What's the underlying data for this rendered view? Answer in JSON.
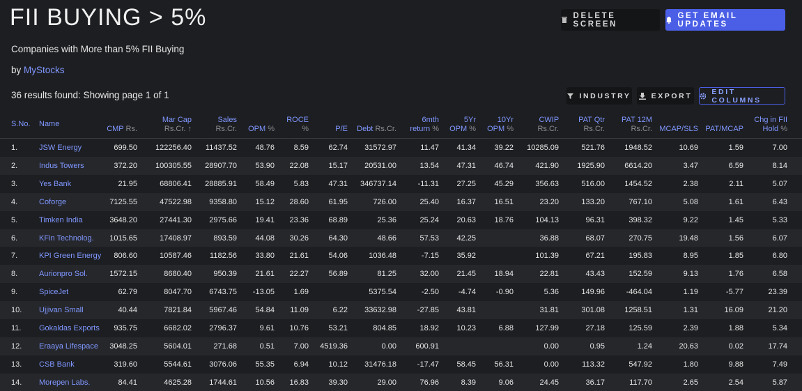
{
  "header": {
    "title": "FII BUYING > 5%",
    "actions": [
      "DELETE SCREEN",
      "GET EMAIL UPDATES"
    ]
  },
  "subtitle": "Companies with More than 5% FII Buying",
  "byline": {
    "prefix": "by",
    "link": "MyStocks"
  },
  "results": "36 results found: Showing page 1 of 1",
  "toolbar": [
    "INDUSTRY",
    "EXPORT",
    "EDIT COLUMNS"
  ],
  "table": {
    "columns": [
      {
        "name": "S.No."
      },
      {
        "name": "Name"
      },
      {
        "name": "CMP",
        "unit": "Rs."
      },
      {
        "name": "Mar Cap",
        "unit": "Rs.Cr. ↑"
      },
      {
        "name": "Sales",
        "unit": "Rs.Cr."
      },
      {
        "name": "OPM",
        "unit": "%"
      },
      {
        "name": "ROCE",
        "unit": "%"
      },
      {
        "name": "P/E"
      },
      {
        "name": "Debt",
        "unit": "Rs.Cr."
      },
      {
        "name": "6mth return",
        "unit": "%"
      },
      {
        "name": "5Yr OPM",
        "unit": "%"
      },
      {
        "name": "10Yr OPM",
        "unit": "%"
      },
      {
        "name": "CWIP",
        "unit": "Rs.Cr."
      },
      {
        "name": "PAT Qtr",
        "unit": "Rs.Cr."
      },
      {
        "name": "PAT 12M",
        "unit": "Rs.Cr."
      },
      {
        "name": "MCAP/SLS"
      },
      {
        "name": "PAT/MCAP"
      },
      {
        "name": "Chg in FII Hold",
        "unit": "%"
      }
    ],
    "rows": [
      [
        "1.",
        "JSW Energy",
        "699.50",
        "122256.40",
        "11437.52",
        "48.76",
        "8.59",
        "62.74",
        "31572.97",
        "11.47",
        "41.34",
        "39.22",
        "10285.09",
        "521.76",
        "1948.52",
        "10.69",
        "1.59",
        "7.00"
      ],
      [
        "2.",
        "Indus Towers",
        "372.20",
        "100305.55",
        "28907.70",
        "53.90",
        "22.08",
        "15.17",
        "20531.00",
        "13.54",
        "47.31",
        "46.74",
        "421.90",
        "1925.90",
        "6614.20",
        "3.47",
        "6.59",
        "8.14"
      ],
      [
        "3.",
        "Yes Bank",
        "21.95",
        "68806.41",
        "28885.91",
        "58.49",
        "5.83",
        "47.31",
        "346737.14",
        "-11.31",
        "27.25",
        "45.29",
        "356.63",
        "516.00",
        "1454.52",
        "2.38",
        "2.11",
        "5.07"
      ],
      [
        "4.",
        "Coforge",
        "7125.55",
        "47522.98",
        "9358.80",
        "15.12",
        "28.60",
        "61.95",
        "726.00",
        "25.40",
        "16.37",
        "16.51",
        "23.20",
        "133.20",
        "767.10",
        "5.08",
        "1.61",
        "6.43"
      ],
      [
        "5.",
        "Timken India",
        "3648.20",
        "27441.30",
        "2975.66",
        "19.41",
        "23.36",
        "68.89",
        "25.36",
        "25.24",
        "20.63",
        "18.76",
        "104.13",
        "96.31",
        "398.32",
        "9.22",
        "1.45",
        "5.33"
      ],
      [
        "6.",
        "KFin Technolog.",
        "1015.65",
        "17408.97",
        "893.59",
        "44.08",
        "30.26",
        "64.30",
        "48.66",
        "57.53",
        "42.25",
        null,
        "36.88",
        "68.07",
        "270.75",
        "19.48",
        "1.56",
        "6.07"
      ],
      [
        "7.",
        "KPI Green Energy",
        "806.60",
        "10587.46",
        "1182.56",
        "33.80",
        "21.61",
        "54.06",
        "1036.48",
        "-7.15",
        "35.92",
        null,
        "101.39",
        "67.21",
        "195.83",
        "8.95",
        "1.85",
        "6.80"
      ],
      [
        "8.",
        "Aurionpro Sol.",
        "1572.15",
        "8680.40",
        "950.39",
        "21.61",
        "22.27",
        "56.89",
        "81.25",
        "32.00",
        "21.45",
        "18.94",
        "22.81",
        "43.43",
        "152.59",
        "9.13",
        "1.76",
        "6.58"
      ],
      [
        "9.",
        "SpiceJet",
        "62.79",
        "8047.70",
        "6743.75",
        "-13.05",
        "1.69",
        null,
        "5375.54",
        "-2.50",
        "-4.74",
        "-0.90",
        "5.36",
        "149.96",
        "-464.04",
        "1.19",
        "-5.77",
        "23.39"
      ],
      [
        "10.",
        "Ujjivan Small",
        "40.44",
        "7821.84",
        "5967.46",
        "54.84",
        "11.09",
        "6.22",
        "33632.98",
        "-27.85",
        "43.81",
        null,
        "31.81",
        "301.08",
        "1258.51",
        "1.31",
        "16.09",
        "21.20"
      ],
      [
        "11.",
        "Gokaldas Exports",
        "935.75",
        "6682.02",
        "2796.37",
        "9.61",
        "10.76",
        "53.21",
        "804.85",
        "18.92",
        "10.23",
        "6.88",
        "127.99",
        "27.18",
        "125.59",
        "2.39",
        "1.88",
        "5.34"
      ],
      [
        "12.",
        "Eraaya Lifespace",
        "3048.25",
        "5604.01",
        "271.68",
        "0.51",
        "7.00",
        "4519.36",
        "0.00",
        "600.91",
        null,
        null,
        "0.00",
        "0.95",
        "1.24",
        "20.63",
        "0.02",
        "17.74"
      ],
      [
        "13.",
        "CSB Bank",
        "319.60",
        "5544.61",
        "3076.06",
        "55.35",
        "6.94",
        "10.12",
        "31476.18",
        "-17.47",
        "58.45",
        "56.31",
        "0.00",
        "113.32",
        "547.92",
        "1.80",
        "9.88",
        "7.49"
      ],
      [
        "14.",
        "Morepen Labs.",
        "84.41",
        "4625.28",
        "1744.61",
        "10.56",
        "16.83",
        "39.30",
        "29.00",
        "76.96",
        "8.39",
        "9.06",
        "24.45",
        "36.17",
        "117.70",
        "2.65",
        "2.54",
        "5.87"
      ]
    ]
  }
}
